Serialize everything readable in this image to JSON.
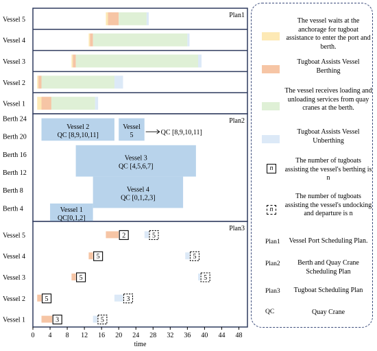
{
  "colors": {
    "wait": "#fde9b5",
    "berthing": "#f6c5a5",
    "service": "#dff0d6",
    "unberthing": "#dce9f7",
    "berth_block": "#b8d3eb",
    "frame": "#2e3a5e"
  },
  "time_axis": {
    "label": "time",
    "ticks": [
      0,
      4,
      8,
      12,
      16,
      20,
      24,
      28,
      32,
      36,
      40,
      44,
      48
    ],
    "min": 0,
    "max": 50
  },
  "plan1": {
    "title": "Plan1",
    "vessels": [
      {
        "label": "Vessel 5",
        "wait": [
          17.0,
          17.5
        ],
        "berthing": [
          17.5,
          20.0
        ],
        "service": [
          20.0,
          26.5
        ],
        "unberthing": [
          26.5,
          27.0
        ]
      },
      {
        "label": "Vessel 4",
        "wait": [
          13.0,
          13.3
        ],
        "berthing": [
          13.3,
          14.0
        ],
        "service": [
          14.0,
          36.0
        ],
        "unberthing": [
          36.0,
          36.5
        ]
      },
      {
        "label": "Vessel 3",
        "wait": [
          9.0,
          9.3
        ],
        "berthing": [
          9.3,
          10.0
        ],
        "service": [
          10.0,
          38.5
        ],
        "unberthing": [
          38.5,
          39.3
        ]
      },
      {
        "label": "Vessel 2",
        "wait": [
          1.0,
          1.3
        ],
        "berthing": [
          1.3,
          2.0
        ],
        "service": [
          2.0,
          19.0
        ],
        "unberthing": [
          19.0,
          21.0
        ]
      },
      {
        "label": "Vessel 1",
        "wait": [
          1.0,
          2.0
        ],
        "berthing": [
          2.0,
          4.3
        ],
        "service": [
          4.3,
          14.5
        ],
        "unberthing": [
          14.5,
          15.2
        ]
      }
    ]
  },
  "plan2": {
    "title": "Plan2",
    "berth_labels": [
      "Berth 24",
      "Berth 20",
      "Berth 16",
      "Berth 12",
      "Berth 8",
      "Berth 4"
    ],
    "berth_values": [
      24,
      20,
      16,
      12,
      8,
      4
    ],
    "berth_range": [
      1,
      25
    ],
    "blocks": [
      {
        "name": "Vessel 2",
        "qc": "QC [8,9,10,11]",
        "t": [
          2,
          19
        ],
        "b": [
          19,
          24
        ]
      },
      {
        "name": "Vessel",
        "qc": "5",
        "t": [
          20,
          26
        ],
        "b": [
          19,
          24
        ]
      },
      {
        "name": "Vessel 3",
        "qc": "QC [4,5,6,7]",
        "t": [
          10,
          38
        ],
        "b": [
          11,
          18
        ]
      },
      {
        "name": "Vessel 4",
        "qc": "QC [0,1,2,3]",
        "t": [
          14,
          35
        ],
        "b": [
          4,
          11
        ]
      },
      {
        "name": "Vessel 1",
        "qc": "QC[0,1,2]",
        "t": [
          4,
          14
        ],
        "b": [
          1,
          5
        ]
      }
    ],
    "callout": {
      "text": "QC [8,9,10,11]",
      "from": [
        26.3,
        21
      ],
      "to": [
        29.5,
        21
      ]
    }
  },
  "plan3": {
    "title": "Plan3",
    "vessels": [
      {
        "label": "Vessel 5",
        "berthing": [
          17.0,
          20.0
        ],
        "in_count": "2",
        "unberthing": [
          26.0,
          27.0
        ],
        "out_count": "5"
      },
      {
        "label": "Vessel 4",
        "berthing": [
          13.0,
          14.0
        ],
        "in_count": "5",
        "unberthing": [
          35.5,
          36.5
        ],
        "out_count": "5"
      },
      {
        "label": "Vessel 3",
        "berthing": [
          9.0,
          10.0
        ],
        "in_count": "5",
        "unberthing": [
          38.5,
          39.0
        ],
        "out_count": "5"
      },
      {
        "label": "Vessel 2",
        "berthing": [
          1.0,
          2.0
        ],
        "in_count": "5",
        "unberthing": [
          19.0,
          21.0
        ],
        "out_count": "3"
      },
      {
        "label": "Vessel 1",
        "berthing": [
          2.0,
          4.5
        ],
        "in_count": "3",
        "unberthing": [
          14.0,
          15.0
        ],
        "out_count": "5"
      }
    ]
  },
  "legend": {
    "wait_text": "The vessel waits at the anchorage for tugboat assistance to enter the port and berth.",
    "berthing_text": "Tugboat Assists Vessel Berthing",
    "service_text": "The vessel receives loading and unloading services from quay cranes at the berth.",
    "unberthing_text": "Tugboat Assists Vessel Unberthing",
    "n_symbol": "n",
    "n_berthing_text": "The number of tugboats assisting the vessel's berthing is n",
    "n_departure_text": "The number of tugboats assisting the vessel's undocking and departure is n",
    "plan1_abbr": "Plan1",
    "plan1_text": "Vessel Port Scheduling Plan.",
    "plan2_abbr": "Plan2",
    "plan2_text": "Berth and Quay Crane Scheduling Plan",
    "plan3_abbr": "Plan3",
    "plan3_text": "Tugboat Scheduling Plan",
    "qc_abbr": "QC",
    "qc_text": "Quay Crane"
  }
}
